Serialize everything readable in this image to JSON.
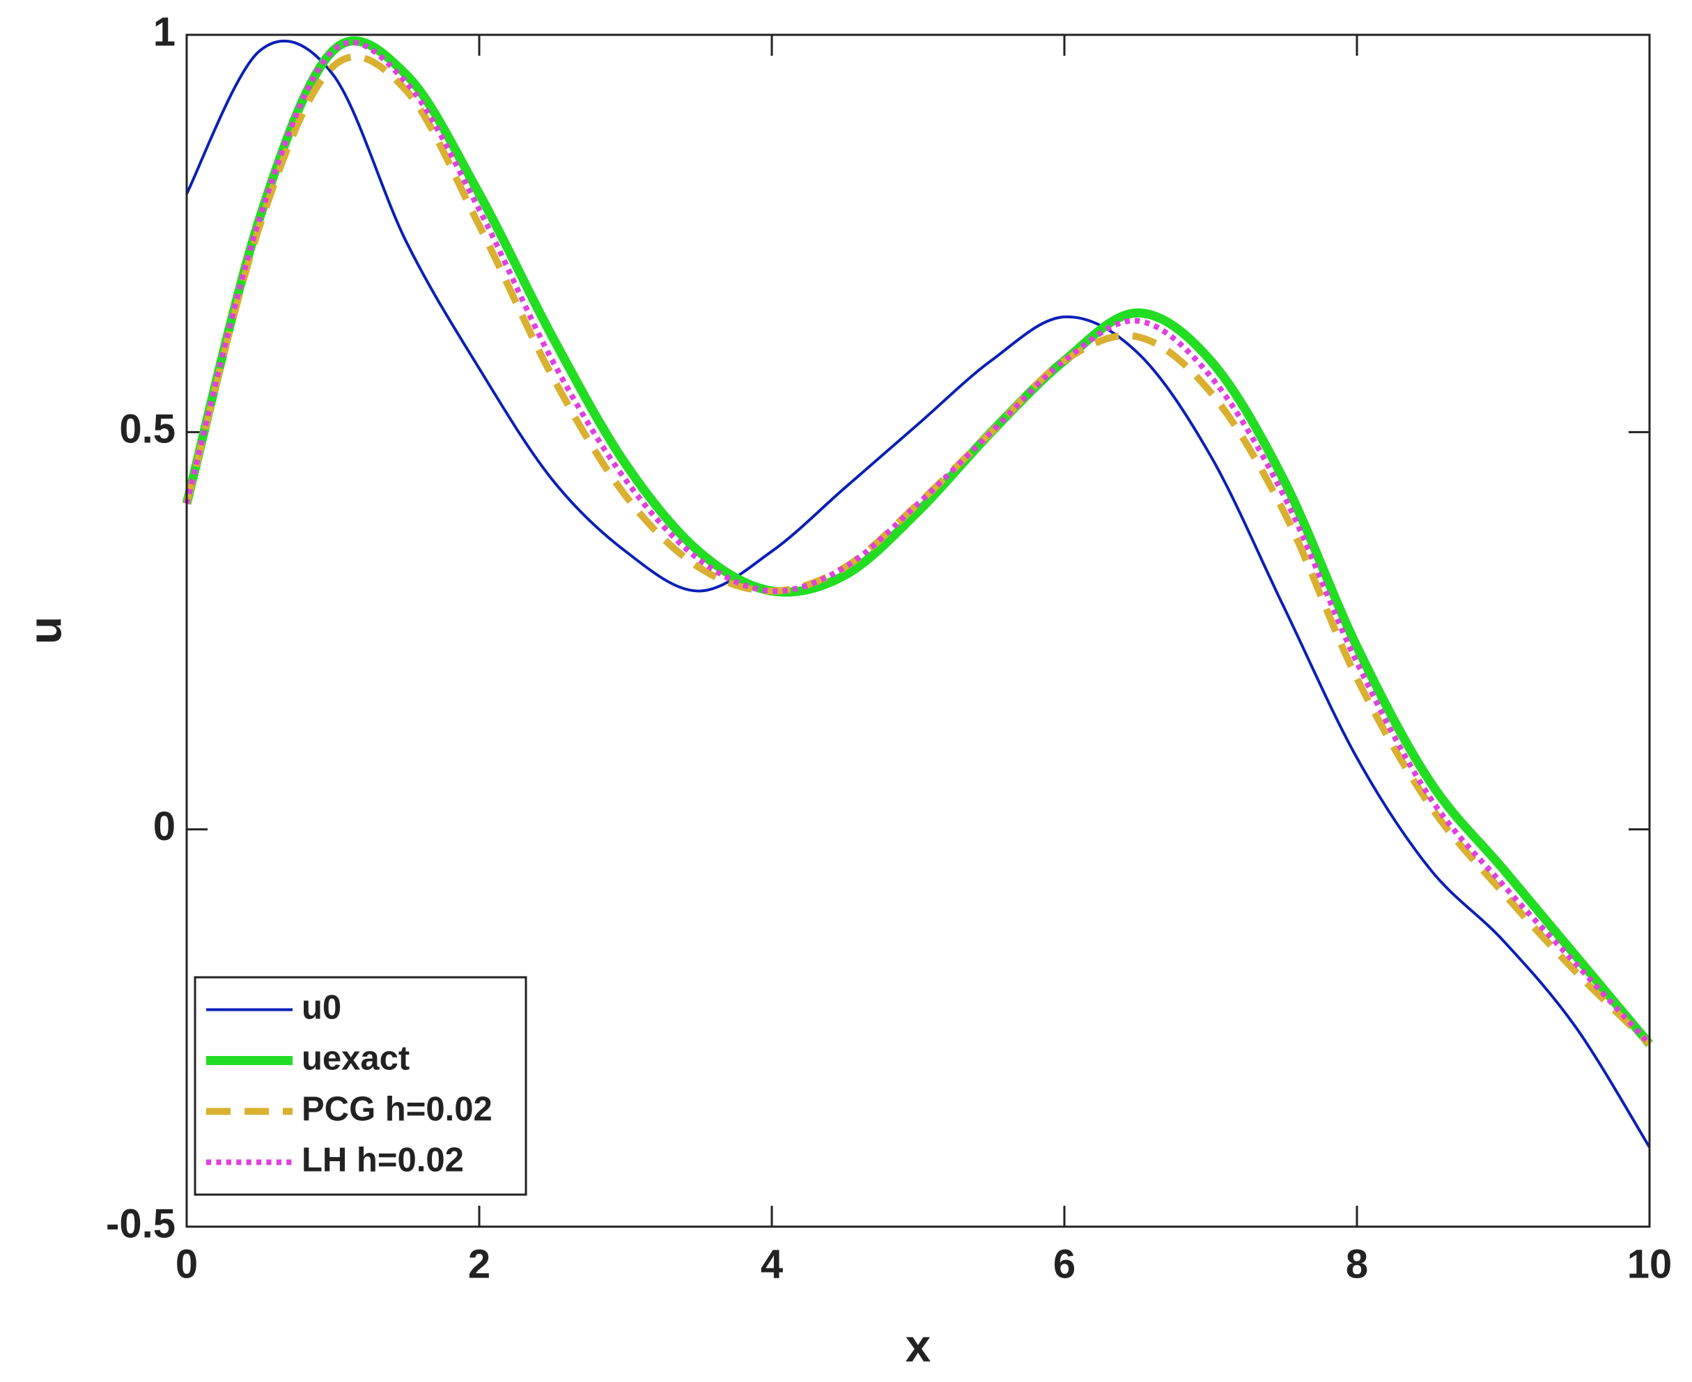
{
  "chart_data": {
    "type": "line",
    "xlabel": "x",
    "ylabel": "u",
    "x": [
      0,
      0.5,
      1,
      1.5,
      2,
      2.5,
      3,
      3.5,
      4,
      4.5,
      5,
      5.5,
      6,
      6.5,
      7,
      7.5,
      8,
      8.5,
      9,
      9.5,
      10
    ],
    "series": [
      {
        "name": "u0",
        "color": "#0a1fb8",
        "style": "solid",
        "width": 4,
        "values": [
          0.8,
          0.98,
          0.95,
          0.74,
          0.58,
          0.44,
          0.35,
          0.3,
          0.35,
          0.43,
          0.51,
          0.59,
          0.645,
          0.6,
          0.47,
          0.28,
          0.09,
          -0.05,
          -0.14,
          -0.25,
          -0.4
        ]
      },
      {
        "name": "uexact",
        "color": "#22dd22",
        "style": "solid",
        "width": 13,
        "values": [
          0.41,
          0.77,
          0.98,
          0.95,
          0.8,
          0.62,
          0.46,
          0.35,
          0.3,
          0.32,
          0.4,
          0.5,
          0.59,
          0.65,
          0.59,
          0.44,
          0.23,
          0.06,
          -0.05,
          -0.16,
          -0.27
        ]
      },
      {
        "name": "PCG h=0.02",
        "color": "#d9b030",
        "style": "dashed",
        "width": 10,
        "values": [
          0.41,
          0.76,
          0.96,
          0.93,
          0.76,
          0.57,
          0.42,
          0.33,
          0.3,
          0.33,
          0.41,
          0.5,
          0.59,
          0.62,
          0.55,
          0.4,
          0.19,
          0.03,
          -0.08,
          -0.18,
          -0.27
        ]
      },
      {
        "name": "LH h=0.02",
        "color": "#e040e0",
        "style": "dotted",
        "width": 8,
        "values": [
          0.41,
          0.77,
          0.98,
          0.94,
          0.78,
          0.59,
          0.44,
          0.34,
          0.3,
          0.33,
          0.41,
          0.5,
          0.59,
          0.64,
          0.57,
          0.42,
          0.21,
          0.04,
          -0.07,
          -0.17,
          -0.27
        ]
      }
    ],
    "xlim": [
      0,
      10
    ],
    "xticks": [
      0,
      2,
      4,
      6,
      8,
      10
    ],
    "ylim": [
      -0.5,
      1
    ],
    "yticks": [
      -0.5,
      0,
      0.5,
      1
    ],
    "legend": "lower left"
  }
}
